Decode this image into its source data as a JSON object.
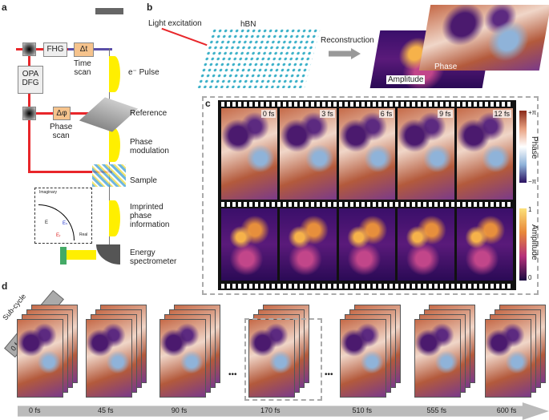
{
  "panels": {
    "a": "a",
    "b": "b",
    "c": "c",
    "d": "d"
  },
  "a": {
    "fhg": "FHG",
    "dt": "Δt",
    "time_scan": "Time\nscan",
    "opa": "OPA\nDFG",
    "dphi": "Δφ",
    "phase_scan": "Phase\nscan",
    "e_pulse": "e⁻ Pulse",
    "reference": "Reference",
    "phase_mod": "Phase\nmodulation",
    "sample": "Sample",
    "imprinted": "Imprinted\nphase\ninformation",
    "spectrometer": "Energy\nspectrometer",
    "imaginary": "Imaginary",
    "real": "Real",
    "e": "E",
    "es": "Eₛ",
    "er": "Eᵣ"
  },
  "b": {
    "light": "Light excitation",
    "hbn": "hBN",
    "reconstruction": "Reconstruction",
    "amplitude": "Amplitude",
    "phase": "Phase"
  },
  "c": {
    "times": [
      "0 fs",
      "3 fs",
      "6 fs",
      "9 fs",
      "12 fs"
    ],
    "phase_label": "Phase",
    "phase_max": "+π",
    "phase_min": "−π",
    "amp_label": "Amplitude",
    "amp_max": "1",
    "amp_min": "0"
  },
  "d": {
    "subcycle": "Sub-cycle",
    "subcycle_times": "0 fs  3 fs  •••  45 fs",
    "times": [
      "0 fs",
      "45 fs",
      "90 fs",
      "170 fs",
      "510 fs",
      "555 fs",
      "600 fs"
    ],
    "ellipsis": "•••"
  },
  "colors": {
    "beam": "#e8262a",
    "pulse": "#ffff00",
    "phase_pos": "#b35a3c",
    "phase_neg": "#4b1a6e",
    "amp_high": "#f6b24a"
  }
}
